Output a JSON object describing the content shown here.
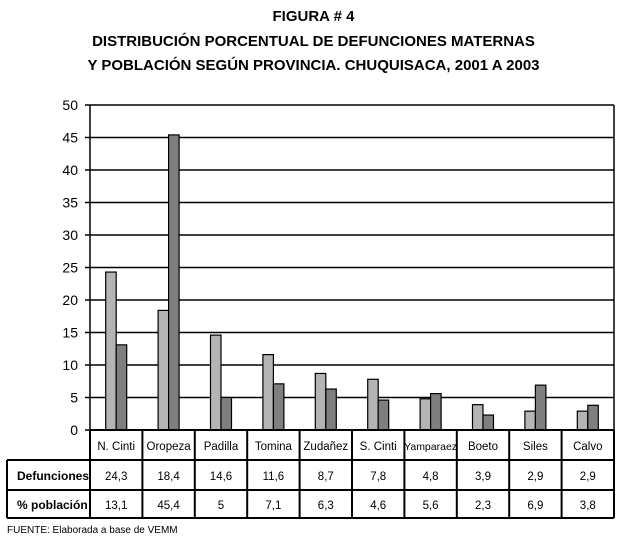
{
  "title_lines": [
    "FIGURA # 4",
    "DISTRIBUCIÓN PORCENTUAL DE DEFUNCIONES MATERNAS",
    "Y POBLACIÓN SEGÚN PROVINCIA. CHUQUISACA, 2001 A 2003"
  ],
  "source": "FUENTE: Elaborada a base de VEMM",
  "chart_data": {
    "type": "bar",
    "title": "FIGURA # 4 DISTRIBUCIÓN PORCENTUAL DE DEFUNCIONES MATERNAS Y POBLACIÓN SEGÚN PROVINCIA. CHUQUISACA, 2001 A 2003",
    "categories": [
      "N. Cinti",
      "Oropeza",
      "Padilla",
      "Tomina",
      "Zudañez",
      "S. Cinti",
      "Yamparaez",
      "Boeto",
      "Siles",
      "Calvo"
    ],
    "series": [
      {
        "name": "Defunciones",
        "color": "#b4b4b4",
        "values": [
          24.3,
          18.4,
          14.6,
          11.6,
          8.7,
          7.8,
          4.8,
          3.9,
          2.9,
          2.9
        ],
        "labels": [
          "24,3",
          "18,4",
          "14,6",
          "11,6",
          "8,7",
          "7,8",
          "4,8",
          "3,9",
          "2,9",
          "2,9"
        ]
      },
      {
        "name": "% población",
        "color": "#7f7f7f",
        "values": [
          13.1,
          45.4,
          5,
          7.1,
          6.3,
          4.6,
          5.6,
          2.3,
          6.9,
          3.8
        ],
        "labels": [
          "13,1",
          "45,4",
          "5",
          "7,1",
          "6,3",
          "4,6",
          "5,6",
          "2,3",
          "6,9",
          "3,8"
        ]
      }
    ],
    "ylim": [
      0,
      50
    ],
    "yticks": [
      0,
      5,
      10,
      15,
      20,
      25,
      30,
      35,
      40,
      45,
      50
    ],
    "grid": true,
    "legend": "data-table-below",
    "xlabel": "",
    "ylabel": ""
  }
}
